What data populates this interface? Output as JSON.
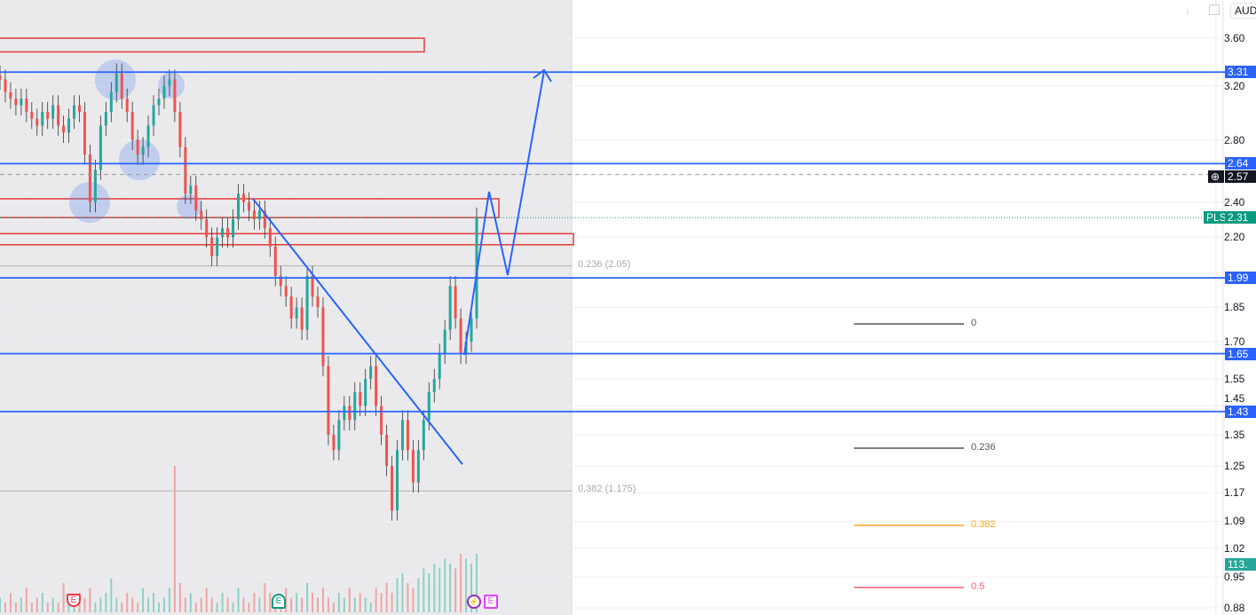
{
  "header": {
    "currency": "AUD",
    "down_icon": "arrow-down-icon",
    "fullscreen_icon": "square-icon"
  },
  "symbol": "PLS",
  "colors": {
    "up": "#26a69a",
    "down": "#ef5350",
    "level": "#2962ff",
    "zone": "#e53935",
    "bg_left": "#eaeaed"
  },
  "chart_data": {
    "type": "candlestick",
    "scale": "log",
    "ylim": [
      0.88,
      3.6
    ],
    "y_ticks": [
      "3.60",
      "3.20",
      "2.80",
      "2.40",
      "2.20",
      "1.85",
      "1.70",
      "1.55",
      "1.45",
      "1.35",
      "1.25",
      "1.17",
      "1.09",
      "1.02",
      "0.95",
      "0.88"
    ],
    "closes": [
      3.25,
      3.15,
      3.1,
      3.05,
      3.1,
      3.0,
      2.95,
      2.9,
      3.0,
      2.95,
      3.05,
      2.9,
      2.85,
      2.95,
      3.05,
      3.0,
      2.7,
      2.4,
      2.6,
      2.9,
      3.0,
      3.15,
      3.3,
      3.1,
      3.0,
      2.8,
      2.7,
      2.75,
      2.9,
      3.05,
      3.1,
      3.2,
      3.25,
      3.0,
      2.75,
      2.45,
      2.5,
      2.35,
      2.3,
      2.2,
      2.1,
      2.2,
      2.25,
      2.2,
      2.3,
      2.45,
      2.4,
      2.35,
      2.3,
      2.35,
      2.25,
      2.15,
      2.0,
      1.95,
      1.9,
      1.8,
      1.85,
      1.75,
      2.0,
      1.9,
      1.85,
      1.6,
      1.35,
      1.3,
      1.4,
      1.45,
      1.4,
      1.5,
      1.45,
      1.55,
      1.6,
      1.45,
      1.35,
      1.25,
      1.12,
      1.3,
      1.4,
      1.3,
      1.2,
      1.3,
      1.4,
      1.5,
      1.55,
      1.65,
      1.75,
      1.95,
      1.8,
      1.65,
      1.7,
      1.8,
      2.31
    ],
    "volume": [
      3,
      2,
      4,
      2,
      3,
      5,
      2,
      3,
      4,
      2,
      3,
      2,
      6,
      3,
      2,
      4,
      3,
      5,
      2,
      3,
      4,
      7,
      3,
      2,
      4,
      3,
      2,
      5,
      3,
      4,
      2,
      3,
      5,
      30,
      6,
      3,
      4,
      2,
      3,
      5,
      3,
      2,
      4,
      3,
      2,
      5,
      3,
      2,
      4,
      3,
      6,
      4,
      3,
      2,
      5,
      3,
      4,
      3,
      6,
      4,
      3,
      5,
      3,
      2,
      4,
      3,
      5,
      3,
      4,
      3,
      2,
      5,
      4,
      6,
      4,
      7,
      8,
      6,
      5,
      7,
      9,
      8,
      10,
      9,
      11,
      10,
      9,
      12,
      11,
      10,
      12
    ],
    "horizontal_levels": [
      {
        "price": 3.31,
        "label": "3.31"
      },
      {
        "price": 2.64,
        "label": "2.64"
      },
      {
        "price": 1.99,
        "label": "1.99"
      },
      {
        "price": 1.65,
        "label": "1.65"
      },
      {
        "price": 1.43,
        "label": "1.43"
      }
    ],
    "zones": [
      [
        3.48,
        3.6
      ],
      [
        2.31,
        2.42
      ],
      [
        2.16,
        2.22
      ]
    ],
    "crosshair_price": "2.57",
    "last_price": "2.31",
    "volume_tag": "113.",
    "fib_lines": [
      {
        "label": "0.236 (2.05)",
        "price": 2.05
      },
      {
        "label": "0.382 (1.175)",
        "price": 1.175
      }
    ],
    "trendline": [
      2.42,
      1.255
    ]
  },
  "fib_legend": [
    {
      "label": "0",
      "color": "#555555"
    },
    {
      "label": "0.236",
      "color": "#555555"
    },
    {
      "label": "0.382",
      "color": "#f7a21b"
    },
    {
      "label": "0.5",
      "color": "#f0616d"
    }
  ],
  "events": [
    {
      "label": "E",
      "type": "earnings-past-red"
    },
    {
      "label": "E",
      "type": "earnings-past-green"
    },
    {
      "label": "⚡",
      "type": "dividend"
    },
    {
      "label": "E",
      "type": "earnings-upcoming"
    }
  ]
}
